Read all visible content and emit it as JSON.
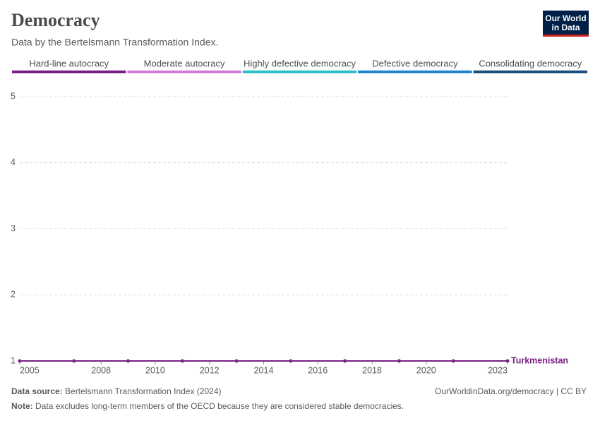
{
  "header": {
    "title": "Democracy",
    "subtitle": "Data by the Bertelsmann Transformation Index.",
    "logo": [
      "Our World",
      "in Data"
    ]
  },
  "chart_data": {
    "type": "line",
    "color_scale": [
      {
        "label": "Hard-line autocracy",
        "color": "#7a1f86"
      },
      {
        "label": "Moderate autocracy",
        "color": "#d27dd4"
      },
      {
        "label": "Highly defective democracy",
        "color": "#2dbfc6"
      },
      {
        "label": "Defective democracy",
        "color": "#1d86cc"
      },
      {
        "label": "Consolidating democracy",
        "color": "#1b4f7c"
      }
    ],
    "x": [
      2005,
      2007,
      2009,
      2011,
      2013,
      2015,
      2017,
      2019,
      2021,
      2023
    ],
    "series": [
      {
        "name": "Turkmenistan",
        "color": "#7a1f86",
        "values": [
          1,
          1,
          1,
          1,
          1,
          1,
          1,
          1,
          1,
          1
        ]
      }
    ],
    "xlim": [
      2005,
      2023
    ],
    "xticks": [
      2005,
      2008,
      2010,
      2012,
      2014,
      2016,
      2018,
      2020,
      2023
    ],
    "ylim": [
      1,
      5
    ],
    "yticks": [
      1,
      2,
      3,
      4,
      5
    ],
    "grid": true
  },
  "footer": {
    "source_label": "Data source:",
    "source": "Bertelsmann Transformation Index (2024)",
    "url": "OurWorldinData.org/democracy | CC BY",
    "note_label": "Note:",
    "note": "Data excludes long-term members of the OECD because they are considered stable democracies."
  }
}
